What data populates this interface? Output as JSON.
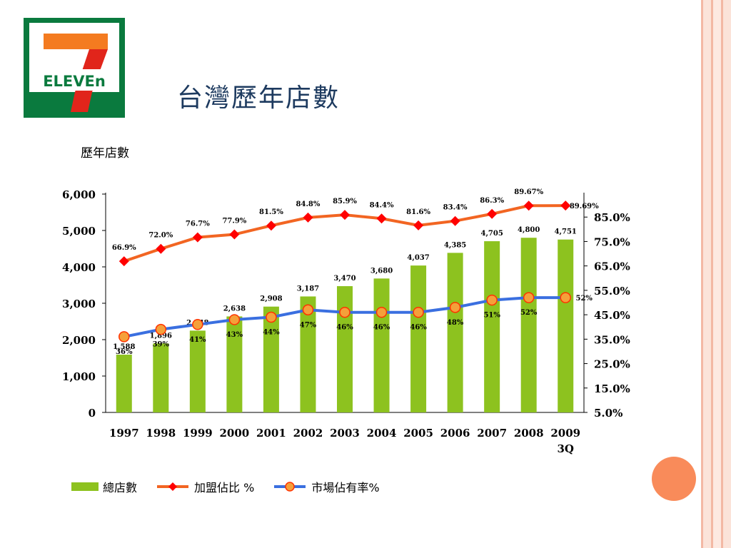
{
  "slide": {
    "title": "台灣歷年店數",
    "chart_label": "歷年店數",
    "logo_text": "ELEVEn"
  },
  "colors": {
    "bar": "#8dc21f",
    "franchise_line": "#f26522",
    "franchise_marker": "#ff0000",
    "market_line": "#3a6fe0",
    "market_marker": "#f5a03a",
    "title": "#1d3a5f"
  },
  "chart_data": {
    "type": "bar",
    "categories": [
      "1997",
      "1998",
      "1999",
      "2000",
      "2001",
      "2002",
      "2003",
      "2004",
      "2005",
      "2006",
      "2007",
      "2008",
      "2009\n3Q"
    ],
    "left_axis": {
      "ylim": [
        0,
        6000
      ],
      "ticks": [
        "0",
        "1,000",
        "2,000",
        "3,000",
        "4,000",
        "5,000",
        "6,000"
      ]
    },
    "right_axis": {
      "ylim": [
        5,
        95
      ],
      "ticks": [
        "5.0%",
        "15.0%",
        "25.0%",
        "35.0%",
        "45.0%",
        "55.0%",
        "65.0%",
        "75.0%",
        "85.0%"
      ]
    },
    "series": [
      {
        "name": "總店數",
        "type": "bar",
        "axis": "left",
        "values": [
          1588,
          1896,
          2248,
          2638,
          2908,
          3187,
          3470,
          3680,
          4037,
          4385,
          4705,
          4800,
          4751
        ],
        "labels": [
          "1,588",
          "1,896",
          "2,248",
          "2,638",
          "2,908",
          "3,187",
          "3,470",
          "3,680",
          "4,037",
          "4,385",
          "4,705",
          "4,800",
          "4,751"
        ]
      },
      {
        "name": "加盟佔比 %",
        "type": "line",
        "axis": "right",
        "values": [
          66.9,
          72.0,
          76.7,
          77.9,
          81.5,
          84.8,
          85.9,
          84.4,
          81.6,
          83.4,
          86.3,
          89.67,
          89.69
        ],
        "labels": [
          "66.9%",
          "72.0%",
          "76.7%",
          "77.9%",
          "81.5%",
          "84.8%",
          "85.9%",
          "84.4%",
          "81.6%",
          "83.4%",
          "86.3%",
          "89.67%",
          "89.69%"
        ]
      },
      {
        "name": "市場佔有率%",
        "type": "line",
        "axis": "right",
        "values": [
          36,
          39,
          41,
          43,
          44,
          47,
          46,
          46,
          46,
          48,
          51,
          52,
          52
        ],
        "labels": [
          "36%",
          "39%",
          "41%",
          "43%",
          "44%",
          "47%",
          "46%",
          "46%",
          "46%",
          "48%",
          "51%",
          "52%",
          "52%"
        ]
      }
    ],
    "legend": [
      "總店數",
      "加盟佔比 %",
      "市場佔有率%"
    ],
    "legend_position": "bottom-left",
    "grid": false
  }
}
